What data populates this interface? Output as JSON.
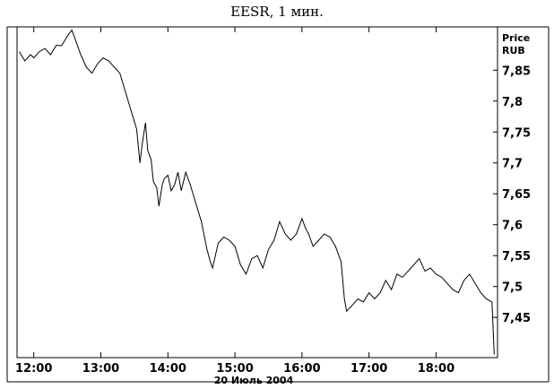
{
  "chart_data": {
    "type": "line",
    "title": "EESR, 1 мин.",
    "y_axis_title": [
      "Price",
      "RUB"
    ],
    "date_label": "20 Июль 2004",
    "ylim": [
      7.385,
      7.92
    ],
    "xlim": [
      "11:45",
      "18:55"
    ],
    "y_ticks": [
      "7,85",
      "7,8",
      "7,75",
      "7,7",
      "7,65",
      "7,6",
      "7,55",
      "7,5",
      "7,45"
    ],
    "x_ticks": [
      "12:00",
      "13:00",
      "14:00",
      "15:00",
      "16:00",
      "17:00",
      "18:00"
    ],
    "grid": false,
    "series": [
      {
        "x": [
          "11:47",
          "11:52",
          "11:57",
          "12:00",
          "12:05",
          "12:10",
          "12:15",
          "12:20",
          "12:25",
          "12:30",
          "12:34",
          "12:38",
          "12:42",
          "12:47",
          "12:52",
          "12:57",
          "13:02",
          "13:07",
          "13:12",
          "13:17",
          "13:22",
          "13:27",
          "13:32",
          "13:35",
          "13:37",
          "13:40",
          "13:42",
          "13:45",
          "13:47",
          "13:50",
          "13:52",
          "13:55",
          "13:57",
          "14:00",
          "14:03",
          "14:06",
          "14:09",
          "14:12",
          "14:16",
          "14:20",
          "14:25",
          "14:30",
          "14:35",
          "14:38",
          "14:40",
          "14:45",
          "14:50",
          "14:55",
          "15:00",
          "15:05",
          "15:10",
          "15:15",
          "15:20",
          "15:25",
          "15:30",
          "15:35",
          "15:40",
          "15:45",
          "15:50",
          "15:55",
          "16:00",
          "16:03",
          "16:06",
          "16:10",
          "16:15",
          "16:20",
          "16:25",
          "16:30",
          "16:35",
          "16:38",
          "16:40",
          "16:45",
          "16:50",
          "16:55",
          "17:00",
          "17:05",
          "17:10",
          "17:15",
          "17:20",
          "17:25",
          "17:30",
          "17:35",
          "17:40",
          "17:45",
          "17:50",
          "17:55",
          "18:00",
          "18:05",
          "18:10",
          "18:15",
          "18:20",
          "18:25",
          "18:30",
          "18:35",
          "18:40",
          "18:45",
          "18:50",
          "18:52"
        ],
        "y": [
          7.88,
          7.865,
          7.875,
          7.87,
          7.88,
          7.885,
          7.875,
          7.89,
          7.89,
          7.905,
          7.915,
          7.895,
          7.875,
          7.855,
          7.845,
          7.86,
          7.87,
          7.865,
          7.855,
          7.845,
          7.815,
          7.785,
          7.755,
          7.7,
          7.73,
          7.765,
          7.72,
          7.705,
          7.67,
          7.66,
          7.63,
          7.665,
          7.675,
          7.68,
          7.655,
          7.665,
          7.685,
          7.655,
          7.685,
          7.665,
          7.635,
          7.605,
          7.56,
          7.54,
          7.53,
          7.57,
          7.58,
          7.575,
          7.565,
          7.535,
          7.52,
          7.545,
          7.55,
          7.53,
          7.56,
          7.575,
          7.605,
          7.585,
          7.575,
          7.585,
          7.61,
          7.595,
          7.585,
          7.565,
          7.575,
          7.585,
          7.58,
          7.565,
          7.54,
          7.48,
          7.46,
          7.47,
          7.48,
          7.475,
          7.49,
          7.48,
          7.49,
          7.51,
          7.495,
          7.52,
          7.515,
          7.525,
          7.535,
          7.545,
          7.525,
          7.53,
          7.52,
          7.515,
          7.505,
          7.495,
          7.49,
          7.51,
          7.52,
          7.505,
          7.49,
          7.48,
          7.475,
          7.39
        ]
      }
    ]
  }
}
